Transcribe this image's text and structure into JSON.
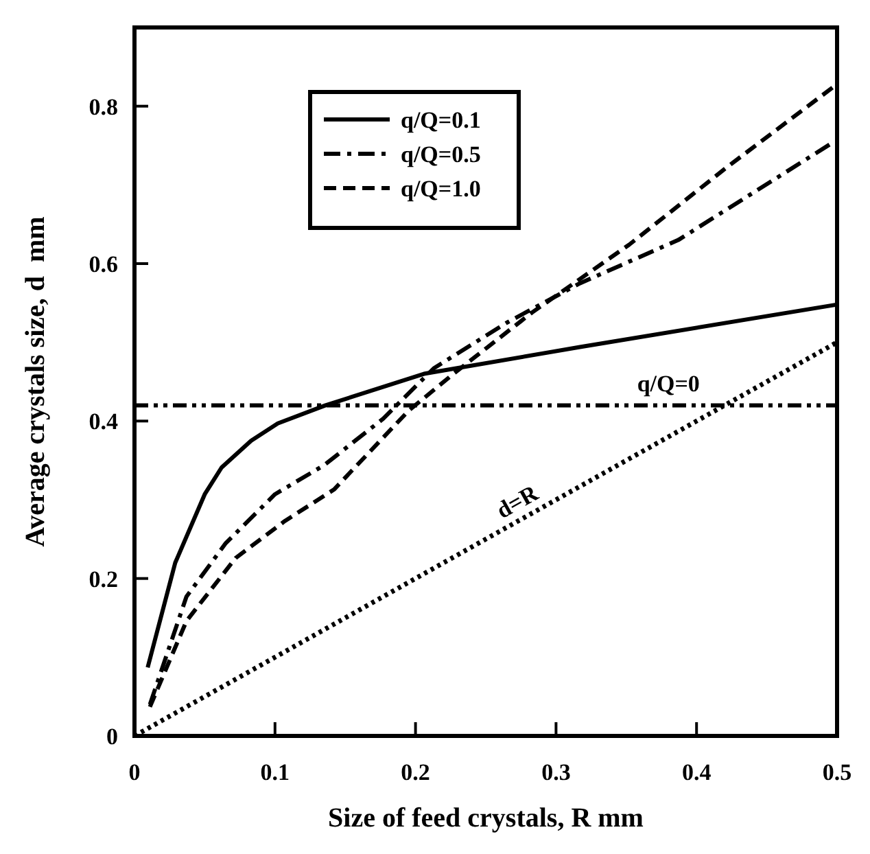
{
  "chart_data": {
    "type": "line",
    "xlabel": "Size of feed crystals, R mm",
    "ylabel": "Average crystals size, d  mm",
    "xlim": [
      0,
      0.5
    ],
    "xticks": [
      0,
      0.1,
      0.2,
      0.3,
      0.4,
      0.5
    ],
    "ylim": [
      0,
      0.9
    ],
    "yticks": [
      0,
      0.2,
      0.4,
      0.6,
      0.8
    ],
    "grid": false,
    "legend": "top left",
    "marker": "none",
    "series": [
      {
        "name": "q/Q=0.1",
        "color": "#000000",
        "line_style": "solid",
        "x": [
          0.0094,
          0.029,
          0.05,
          0.062,
          0.083,
          0.102,
          0.136,
          0.206,
          0.317,
          0.5
        ],
        "values": [
          0.087,
          0.22,
          0.307,
          0.341,
          0.375,
          0.397,
          0.42,
          0.46,
          0.494,
          0.548
        ]
      },
      {
        "name": "q/Q=0.5",
        "color": "#000000",
        "line_style": "dashdot",
        "x": [
          0.011,
          0.037,
          0.065,
          0.1,
          0.135,
          0.177,
          0.213,
          0.265,
          0.317,
          0.387,
          0.498
        ],
        "values": [
          0.04,
          0.177,
          0.245,
          0.307,
          0.344,
          0.403,
          0.467,
          0.525,
          0.575,
          0.63,
          0.755
        ]
      },
      {
        "name": "q/Q=1.0",
        "color": "#000000",
        "line_style": "dashed",
        "x": [
          0.011,
          0.037,
          0.072,
          0.107,
          0.142,
          0.195,
          0.227,
          0.283,
          0.352,
          0.422,
          0.5
        ],
        "values": [
          0.037,
          0.146,
          0.226,
          0.273,
          0.313,
          0.413,
          0.46,
          0.538,
          0.624,
          0.723,
          0.828
        ]
      },
      {
        "color": "#000000",
        "line_style": "dotted",
        "x": [
          0,
          0.5
        ],
        "values": [
          0,
          0.5
        ]
      }
    ],
    "annotations": [
      {
        "text": "d=R",
        "x": 0.275,
        "y": 0.275
      }
    ],
    "ref_lines": [
      {
        "axis": "y",
        "value": 0.42,
        "label": "q/Q=0",
        "line_style": "dashdotdot",
        "color": "#000000"
      }
    ]
  }
}
